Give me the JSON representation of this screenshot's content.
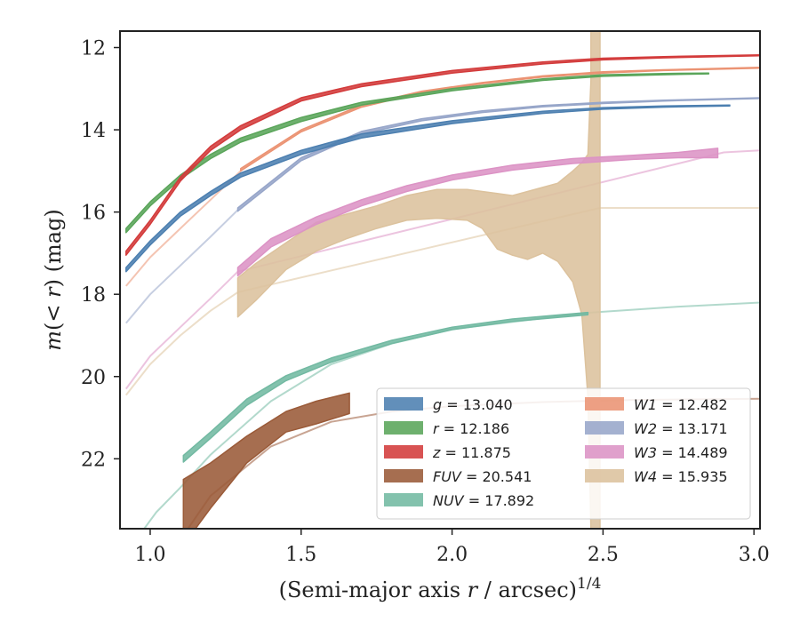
{
  "chart_data": {
    "type": "line",
    "xlabel": "(Semi-major axis r / arcsec)^1/4",
    "ylabel": "m(< r) (mag)",
    "xlim": [
      0.9,
      3.02
    ],
    "ylim": [
      23.7,
      11.6
    ],
    "y_inverted": true,
    "x_ticks": [
      "1.0",
      "1.5",
      "2.0",
      "2.5",
      "3.0"
    ],
    "x_tick_values": [
      1.0,
      1.5,
      2.0,
      2.5,
      3.0
    ],
    "y_ticks": [
      "12",
      "14",
      "16",
      "18",
      "20",
      "22"
    ],
    "y_tick_values": [
      12,
      14,
      16,
      18,
      20,
      22
    ],
    "legend_position": "lower-right",
    "legend_columns": 2,
    "series": [
      {
        "name": "g = 13.040",
        "legend_prefix": "g",
        "legend_value": "13.040",
        "color": "#4c7fb0",
        "band": [
          [
            0.92,
            17.45,
            17.35
          ],
          [
            1.0,
            16.8,
            16.7
          ],
          [
            1.1,
            16.1,
            16.0
          ],
          [
            1.2,
            15.6,
            15.5
          ],
          [
            1.3,
            15.15,
            15.05
          ],
          [
            1.5,
            14.6,
            14.5
          ],
          [
            1.7,
            14.2,
            14.1
          ],
          [
            2.0,
            13.85,
            13.78
          ],
          [
            2.3,
            13.6,
            13.55
          ],
          [
            2.5,
            13.5,
            13.46
          ],
          [
            2.7,
            13.45,
            13.42
          ],
          [
            2.92,
            13.42,
            13.4
          ]
        ],
        "extrapolated": []
      },
      {
        "name": "r = 12.186",
        "legend_prefix": "r",
        "legend_value": "12.186",
        "color": "#5aa55a",
        "band": [
          [
            0.92,
            16.5,
            16.4
          ],
          [
            1.0,
            15.85,
            15.75
          ],
          [
            1.1,
            15.2,
            15.1
          ],
          [
            1.2,
            14.7,
            14.6
          ],
          [
            1.3,
            14.3,
            14.2
          ],
          [
            1.5,
            13.8,
            13.7
          ],
          [
            1.7,
            13.4,
            13.33
          ],
          [
            2.0,
            13.05,
            13.0
          ],
          [
            2.3,
            12.8,
            12.76
          ],
          [
            2.5,
            12.7,
            12.66
          ],
          [
            2.7,
            12.66,
            12.63
          ],
          [
            2.85,
            12.64,
            12.62
          ]
        ],
        "extrapolated": []
      },
      {
        "name": "z = 11.875",
        "legend_prefix": "z",
        "legend_value": "11.875",
        "color": "#d33b3b",
        "band": [
          [
            0.92,
            17.05,
            16.95
          ],
          [
            1.0,
            16.3,
            16.2
          ],
          [
            1.1,
            15.25,
            15.15
          ],
          [
            1.2,
            14.5,
            14.4
          ],
          [
            1.3,
            14.0,
            13.9
          ],
          [
            1.5,
            13.3,
            13.22
          ],
          [
            1.7,
            12.95,
            12.88
          ],
          [
            2.0,
            12.62,
            12.56
          ],
          [
            2.3,
            12.4,
            12.35
          ],
          [
            2.5,
            12.3,
            12.26
          ],
          [
            2.7,
            12.25,
            12.22
          ],
          [
            3.02,
            12.2,
            12.18
          ]
        ],
        "extrapolated": []
      },
      {
        "name": "FUV = 20.541",
        "legend_prefix": "FUV",
        "legend_value": "20.541",
        "color": "#9a5a38",
        "band": [
          [
            1.11,
            24.1,
            22.5
          ],
          [
            1.2,
            23.2,
            22.1
          ],
          [
            1.32,
            22.1,
            21.45
          ],
          [
            1.45,
            21.35,
            20.85
          ],
          [
            1.55,
            21.15,
            20.6
          ],
          [
            1.66,
            20.9,
            20.4
          ]
        ],
        "extrapolated": [
          [
            1.05,
            24.5
          ],
          [
            1.2,
            22.9
          ],
          [
            1.4,
            21.7
          ],
          [
            1.6,
            21.1
          ],
          [
            1.8,
            20.85
          ],
          [
            2.0,
            20.72
          ],
          [
            2.3,
            20.62
          ],
          [
            2.6,
            20.57
          ],
          [
            3.02,
            20.54
          ]
        ]
      },
      {
        "name": "NUV = 17.892",
        "legend_prefix": "NUV",
        "legend_value": "17.892",
        "color": "#72b9a2",
        "band": [
          [
            1.11,
            22.08,
            21.92
          ],
          [
            1.2,
            21.5,
            21.35
          ],
          [
            1.32,
            20.7,
            20.55
          ],
          [
            1.45,
            20.1,
            19.98
          ],
          [
            1.6,
            19.65,
            19.55
          ],
          [
            1.8,
            19.2,
            19.12
          ],
          [
            2.0,
            18.86,
            18.8
          ],
          [
            2.2,
            18.66,
            18.6
          ],
          [
            2.45,
            18.5,
            18.44
          ]
        ],
        "extrapolated": [
          [
            0.95,
            24.0
          ],
          [
            1.02,
            23.3
          ],
          [
            1.1,
            22.7
          ],
          [
            1.2,
            21.9
          ],
          [
            1.4,
            20.6
          ],
          [
            1.6,
            19.7
          ],
          [
            1.8,
            19.2
          ],
          [
            2.0,
            18.85
          ],
          [
            2.45,
            18.45
          ],
          [
            2.75,
            18.3
          ],
          [
            3.02,
            18.2
          ]
        ]
      },
      {
        "name": "W1 = 12.482",
        "legend_prefix": "W1",
        "legend_value": "12.482",
        "color": "#eb9373",
        "band": [
          [
            1.3,
            15.0,
            14.94
          ],
          [
            1.5,
            14.05,
            14.0
          ],
          [
            1.7,
            13.45,
            13.4
          ],
          [
            1.9,
            13.1,
            13.06
          ],
          [
            2.1,
            12.88,
            12.85
          ],
          [
            2.3,
            12.72,
            12.69
          ],
          [
            2.5,
            12.62,
            12.59
          ],
          [
            2.7,
            12.56,
            12.54
          ],
          [
            3.02,
            12.5,
            12.48
          ]
        ],
        "extrapolated": [
          [
            0.92,
            17.8
          ],
          [
            1.0,
            17.1
          ],
          [
            1.1,
            16.4
          ],
          [
            1.2,
            15.7
          ],
          [
            1.3,
            15.0
          ]
        ]
      },
      {
        "name": "W2 = 13.171",
        "legend_prefix": "W2",
        "legend_value": "13.171",
        "color": "#97a6c9",
        "band": [
          [
            1.29,
            15.98,
            15.9
          ],
          [
            1.5,
            14.75,
            14.68
          ],
          [
            1.7,
            14.1,
            14.04
          ],
          [
            1.9,
            13.78,
            13.73
          ],
          [
            2.1,
            13.58,
            13.54
          ],
          [
            2.3,
            13.44,
            13.41
          ],
          [
            2.5,
            13.36,
            13.33
          ],
          [
            2.7,
            13.3,
            13.28
          ],
          [
            3.02,
            13.24,
            13.22
          ]
        ],
        "extrapolated": [
          [
            0.92,
            18.7
          ],
          [
            1.0,
            18.0
          ],
          [
            1.1,
            17.3
          ],
          [
            1.2,
            16.6
          ],
          [
            1.29,
            15.95
          ]
        ]
      },
      {
        "name": "W3 = 14.489",
        "legend_prefix": "W3",
        "legend_value": "14.489",
        "color": "#dc93c5",
        "band": [
          [
            1.29,
            17.55,
            17.35
          ],
          [
            1.4,
            16.85,
            16.65
          ],
          [
            1.55,
            16.3,
            16.12
          ],
          [
            1.7,
            15.85,
            15.7
          ],
          [
            1.85,
            15.5,
            15.36
          ],
          [
            2.0,
            15.22,
            15.1
          ],
          [
            2.2,
            14.98,
            14.86
          ],
          [
            2.4,
            14.82,
            14.7
          ],
          [
            2.6,
            14.72,
            14.62
          ],
          [
            2.75,
            14.68,
            14.55
          ],
          [
            2.88,
            14.68,
            14.45
          ]
        ],
        "extrapolated": [
          [
            0.92,
            20.3
          ],
          [
            1.0,
            19.5
          ],
          [
            1.1,
            18.8
          ],
          [
            1.2,
            18.1
          ],
          [
            1.29,
            17.45
          ],
          [
            2.9,
            14.55
          ],
          [
            3.02,
            14.5
          ]
        ]
      },
      {
        "name": "W4 = 15.935",
        "legend_prefix": "W4",
        "legend_value": "15.935",
        "color": "#dcc29d",
        "band": [
          [
            1.29,
            18.55,
            17.6
          ],
          [
            1.35,
            18.15,
            17.25
          ],
          [
            1.45,
            17.4,
            16.75
          ],
          [
            1.55,
            16.95,
            16.25
          ],
          [
            1.65,
            16.65,
            16.05
          ],
          [
            1.75,
            16.4,
            15.85
          ],
          [
            1.85,
            16.2,
            15.6
          ],
          [
            1.95,
            16.15,
            15.45
          ],
          [
            2.05,
            16.2,
            15.45
          ],
          [
            2.1,
            16.4,
            15.5
          ],
          [
            2.15,
            16.9,
            15.55
          ],
          [
            2.2,
            17.05,
            15.6
          ],
          [
            2.25,
            17.15,
            15.5
          ],
          [
            2.3,
            17.0,
            15.4
          ],
          [
            2.35,
            17.2,
            15.3
          ],
          [
            2.4,
            17.7,
            15.0
          ],
          [
            2.43,
            18.5,
            14.8
          ],
          [
            2.45,
            20.5,
            14.6
          ],
          [
            2.46,
            23.7,
            12.8
          ],
          [
            2.46,
            23.7,
            11.6
          ],
          [
            2.49,
            23.7,
            11.6
          ]
        ],
        "extrapolated": [
          [
            0.92,
            20.45
          ],
          [
            1.0,
            19.7
          ],
          [
            1.1,
            19.0
          ],
          [
            1.2,
            18.4
          ],
          [
            1.29,
            17.95
          ],
          [
            2.49,
            15.9
          ],
          [
            2.7,
            15.9
          ],
          [
            3.02,
            15.9
          ]
        ]
      }
    ]
  }
}
